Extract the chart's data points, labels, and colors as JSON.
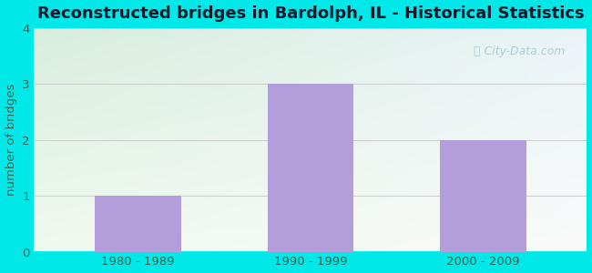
{
  "title": "Reconstructed bridges in Bardolph, IL - Historical Statistics",
  "categories": [
    "1980 - 1989",
    "1990 - 1999",
    "2000 - 2009"
  ],
  "values": [
    1,
    3,
    2
  ],
  "bar_color": "#b39ddb",
  "ylabel": "number of bridges",
  "ylim": [
    0,
    4
  ],
  "yticks": [
    0,
    1,
    2,
    3,
    4
  ],
  "title_fontsize": 13,
  "title_fontweight": "bold",
  "ylabel_color": "#336655",
  "tick_color": "#336655",
  "background_outer": "#00e8e8",
  "bg_color_topleft": "#d8eedd",
  "bg_color_topright": "#eaf4f8",
  "bg_color_bottomright": "#f5f5f5",
  "grid_color": "#cccccc",
  "watermark_text": "City-Data.com",
  "watermark_color": "#aac8d0"
}
